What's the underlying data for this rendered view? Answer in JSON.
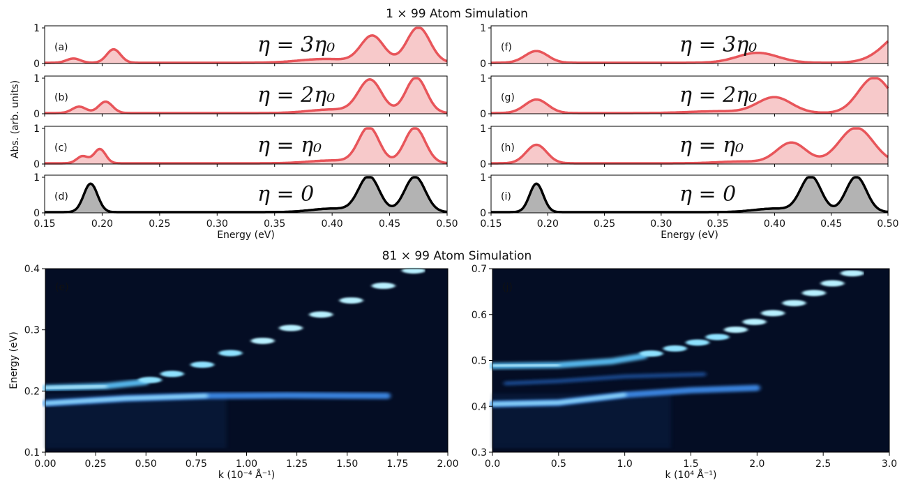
{
  "top_title": "1 × 99 Atom Simulation",
  "bottom_title": "81 × 99 Atom Simulation",
  "chart_data": [
    {
      "type": "area",
      "group": "left",
      "panels": [
        {
          "label": "(a)",
          "annotation": "η = 3η₀",
          "color": "#e8555a",
          "fill": "#f7c9ca",
          "peaks": [
            [
              0.175,
              0.12,
              0.006
            ],
            [
              0.21,
              0.38,
              0.006
            ],
            [
              0.435,
              0.75,
              0.01
            ],
            [
              0.475,
              1.0,
              0.01
            ],
            [
              0.38,
              0.04,
              0.02
            ],
            [
              0.4,
              0.08,
              0.02
            ]
          ],
          "base": 0.02
        },
        {
          "label": "(b)",
          "annotation": "η = 2η₀",
          "color": "#e8555a",
          "fill": "#f7c9ca",
          "peaks": [
            [
              0.18,
              0.18,
              0.006
            ],
            [
              0.203,
              0.32,
              0.006
            ],
            [
              0.433,
              0.92,
              0.01
            ],
            [
              0.473,
              1.0,
              0.009
            ],
            [
              0.4,
              0.1,
              0.02
            ]
          ],
          "base": 0.02
        },
        {
          "label": "(c)",
          "annotation": "η = η₀",
          "color": "#e8555a",
          "fill": "#f7c9ca",
          "peaks": [
            [
              0.183,
              0.2,
              0.005
            ],
            [
              0.198,
              0.4,
              0.005
            ],
            [
              0.432,
              1.0,
              0.009
            ],
            [
              0.472,
              1.0,
              0.009
            ],
            [
              0.4,
              0.08,
              0.02
            ]
          ],
          "base": 0.02
        },
        {
          "label": "(d)",
          "annotation": "η = 0",
          "color": "#000000",
          "fill": "#b3b3b3",
          "peaks": [
            [
              0.19,
              0.8,
              0.006
            ],
            [
              0.432,
              1.0,
              0.009
            ],
            [
              0.472,
              1.0,
              0.009
            ],
            [
              0.4,
              0.1,
              0.018
            ]
          ],
          "base": 0.02
        }
      ],
      "xlim": [
        0.15,
        0.5
      ],
      "ylim": [
        0,
        1
      ],
      "xticks": [
        "0.15",
        "0.20",
        "0.25",
        "0.30",
        "0.35",
        "0.40",
        "0.45",
        "0.50"
      ],
      "yticks": [
        "0",
        "1"
      ],
      "xlabel": "Energy (eV)",
      "ylabel": "Abs. (arb. units)"
    },
    {
      "type": "area",
      "group": "right",
      "panels": [
        {
          "label": "(f)",
          "annotation": "η = 3η₀",
          "color": "#e8555a",
          "fill": "#f7c9ca",
          "peaks": [
            [
              0.19,
              0.33,
              0.01
            ],
            [
              0.385,
              0.28,
              0.018
            ],
            [
              0.52,
              1.0,
              0.02
            ]
          ],
          "base": 0.02
        },
        {
          "label": "(g)",
          "annotation": "η = 2η₀",
          "color": "#e8555a",
          "fill": "#f7c9ca",
          "peaks": [
            [
              0.19,
              0.38,
              0.01
            ],
            [
              0.4,
              0.44,
              0.015
            ],
            [
              0.488,
              1.0,
              0.014
            ],
            [
              0.35,
              0.05,
              0.025
            ]
          ],
          "base": 0.02
        },
        {
          "label": "(h)",
          "annotation": "η = η₀",
          "color": "#e8555a",
          "fill": "#f7c9ca",
          "peaks": [
            [
              0.19,
              0.52,
              0.009
            ],
            [
              0.415,
              0.58,
              0.013
            ],
            [
              0.472,
              1.0,
              0.015
            ],
            [
              0.37,
              0.05,
              0.02
            ]
          ],
          "base": 0.02
        },
        {
          "label": "(i)",
          "annotation": "η = 0",
          "color": "#000000",
          "fill": "#b3b3b3",
          "peaks": [
            [
              0.19,
              0.8,
              0.006
            ],
            [
              0.432,
              1.0,
              0.009
            ],
            [
              0.472,
              1.0,
              0.009
            ],
            [
              0.4,
              0.1,
              0.018
            ]
          ],
          "base": 0.02
        }
      ],
      "xlim": [
        0.15,
        0.5
      ],
      "ylim": [
        0,
        1
      ],
      "xticks": [
        "0.15",
        "0.20",
        "0.25",
        "0.30",
        "0.35",
        "0.40",
        "0.45",
        "0.50"
      ],
      "yticks": [
        "0",
        "1"
      ],
      "xlabel": "Energy (eV)",
      "ylabel": ""
    },
    {
      "type": "heatmap",
      "label": "(e)",
      "xlim": [
        0,
        2.0
      ],
      "ylim": [
        0.1,
        0.4
      ],
      "xticks": [
        "0.00",
        "0.25",
        "0.50",
        "0.75",
        "1.00",
        "1.25",
        "1.50",
        "1.75",
        "2.00"
      ],
      "yticks": [
        "0.1",
        "0.2",
        "0.3",
        "0.4"
      ],
      "xlabel": "k (10⁻⁴ Å⁻¹)",
      "ylabel": "Energy (eV)",
      "bands": [
        [
          0.0,
          0.18
        ],
        [
          0.4,
          0.188
        ],
        [
          0.8,
          0.192
        ],
        [
          1.2,
          0.193
        ],
        [
          1.7,
          0.192
        ]
      ],
      "bands2": [
        [
          0.0,
          0.205
        ],
        [
          0.3,
          0.208
        ],
        [
          0.5,
          0.215
        ]
      ],
      "dots": [
        [
          0.52,
          0.218
        ],
        [
          0.63,
          0.228
        ],
        [
          0.78,
          0.243
        ],
        [
          0.92,
          0.262
        ],
        [
          1.08,
          0.282
        ],
        [
          1.22,
          0.303
        ],
        [
          1.37,
          0.325
        ],
        [
          1.52,
          0.348
        ],
        [
          1.68,
          0.372
        ],
        [
          1.83,
          0.397
        ]
      ]
    },
    {
      "type": "heatmap",
      "label": "(j)",
      "xlim": [
        0,
        3.0
      ],
      "ylim": [
        0.3,
        0.7
      ],
      "xticks": [
        "0.0",
        "0.5",
        "1.0",
        "1.5",
        "2.0",
        "2.5",
        "3.0"
      ],
      "yticks": [
        "0.3",
        "0.4",
        "0.5",
        "0.6",
        "0.7"
      ],
      "xlabel": "k (10⁴ Å⁻¹)",
      "ylabel": "",
      "bands": [
        [
          0.0,
          0.405
        ],
        [
          0.5,
          0.408
        ],
        [
          1.0,
          0.425
        ],
        [
          1.5,
          0.435
        ],
        [
          2.0,
          0.44
        ]
      ],
      "bands2": [
        [
          0.0,
          0.488
        ],
        [
          0.5,
          0.49
        ],
        [
          0.9,
          0.498
        ],
        [
          1.15,
          0.51
        ]
      ],
      "bands3": [
        [
          0.1,
          0.45
        ],
        [
          0.5,
          0.455
        ],
        [
          1.0,
          0.465
        ],
        [
          1.6,
          0.47
        ]
      ],
      "dots": [
        [
          1.2,
          0.515
        ],
        [
          1.38,
          0.526
        ],
        [
          1.55,
          0.539
        ],
        [
          1.7,
          0.551
        ],
        [
          1.84,
          0.567
        ],
        [
          1.98,
          0.584
        ],
        [
          2.12,
          0.603
        ],
        [
          2.28,
          0.625
        ],
        [
          2.43,
          0.647
        ],
        [
          2.57,
          0.668
        ],
        [
          2.72,
          0.69
        ]
      ]
    }
  ]
}
